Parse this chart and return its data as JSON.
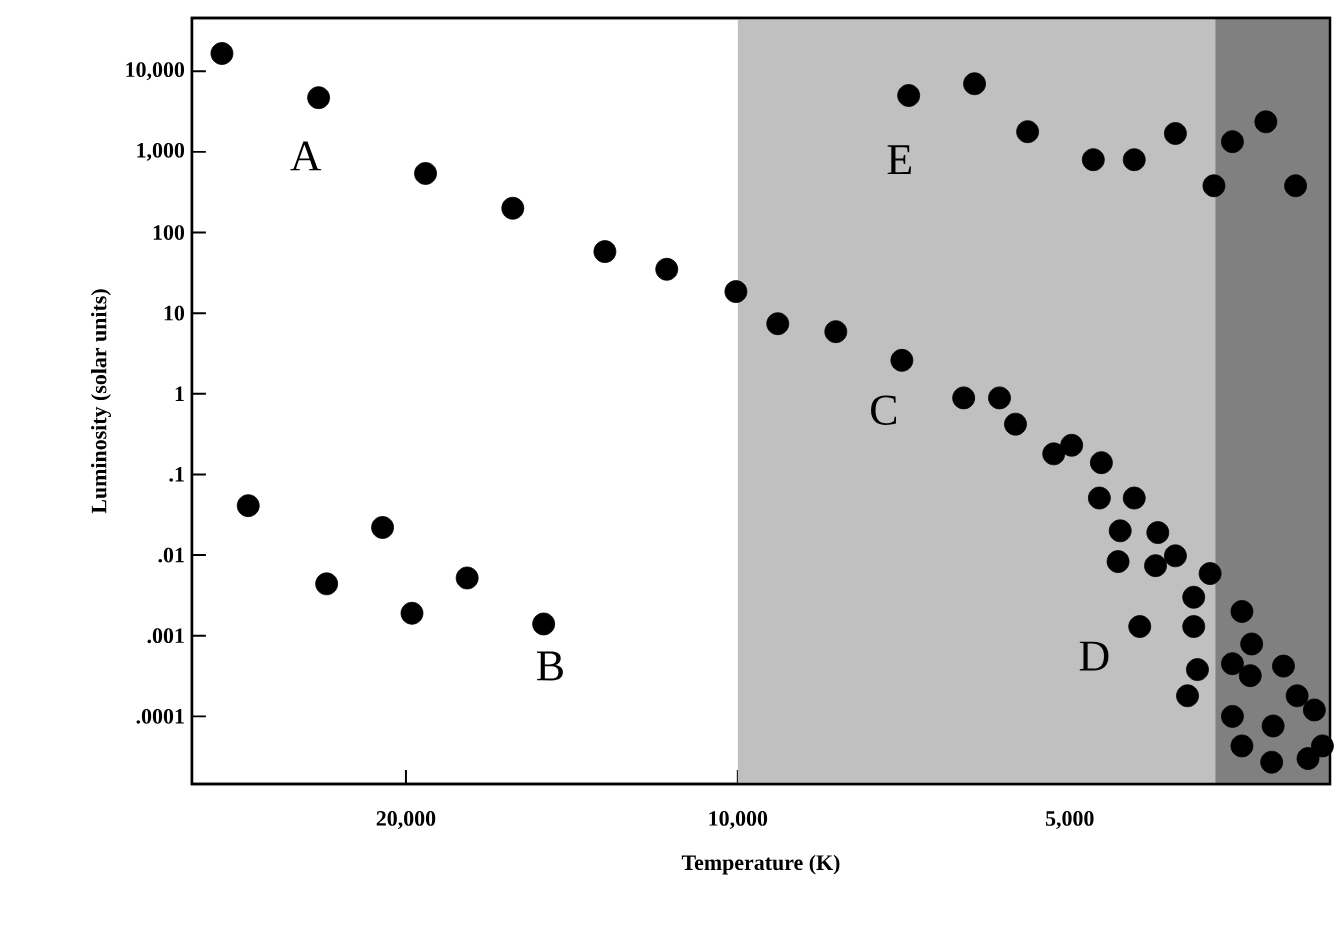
{
  "chart_data": {
    "type": "scatter",
    "xlabel": "Temperature (K)",
    "ylabel": "Luminosity (solar units)",
    "log": "xy",
    "marker": "circle",
    "xlim": [
      31270,
      2904
    ],
    "ylim": [
      1.45e-05,
      45700
    ],
    "xticks": [
      {
        "value": 20000,
        "label": "20,000"
      },
      {
        "value": 10000,
        "label": "10,000"
      },
      {
        "value": 5000,
        "label": "5,000"
      }
    ],
    "yticks": [
      {
        "value": 10000,
        "label": "10,000"
      },
      {
        "value": 1000,
        "label": "1,000"
      },
      {
        "value": 100,
        "label": "100"
      },
      {
        "value": 10,
        "label": "10"
      },
      {
        "value": 1,
        "label": "1"
      },
      {
        "value": 0.1,
        "label": ".1"
      },
      {
        "value": 0.01,
        "label": ".01"
      },
      {
        "value": 0.001,
        "label": ".001"
      },
      {
        "value": 0.0001,
        "label": ".0001"
      }
    ],
    "bands": [
      {
        "axis": "x",
        "from": 10000,
        "to": 3690,
        "color": "#c0c0c0"
      },
      {
        "axis": "x",
        "from": 3690,
        "to": 2904,
        "color": "#808080"
      }
    ],
    "annotations": [
      "A",
      "B",
      "C",
      "D",
      "E"
    ],
    "series": [
      {
        "color": "#000000",
        "x": [
          29370,
          24000,
          19200,
          16000,
          13200,
          11600,
          10040,
          9200,
          8150,
          7100,
          7000,
          6100,
          5460,
          4760,
          4370,
          4010,
          3700,
          3560,
          3320,
          3120,
          6240,
          5790,
          5600,
          5170,
          4980,
          4680,
          4700,
          4370,
          4500,
          4160,
          4520,
          4180,
          4010,
          3730,
          3860,
          4320,
          3860,
          3490,
          3420,
          3560,
          3430,
          3830,
          3910,
          3200,
          3110,
          3000,
          3560,
          3270,
          3490,
          3280,
          3040,
          2950,
          27800,
          23600,
          21000,
          19750,
          17600,
          15000
        ],
        "values": [
          16600,
          4700,
          540,
          200,
          58,
          35,
          18.5,
          7.4,
          5.9,
          2.6,
          5000,
          7000,
          1780,
          800,
          800,
          1690,
          380,
          1340,
          2360,
          380,
          0.89,
          0.89,
          0.42,
          0.18,
          0.23,
          0.14,
          0.051,
          0.051,
          0.02,
          0.019,
          0.0083,
          0.0074,
          0.0098,
          0.0059,
          0.003,
          0.0013,
          0.0013,
          0.002,
          0.00079,
          0.00045,
          0.00032,
          0.00038,
          0.00018,
          0.00042,
          0.00018,
          0.00012,
          0.0001,
          7.6e-05,
          4.3e-05,
          2.7e-05,
          3e-05,
          4.3e-05,
          0.041,
          0.0044,
          0.022,
          0.0019,
          0.0052,
          0.0014
        ]
      }
    ]
  }
}
